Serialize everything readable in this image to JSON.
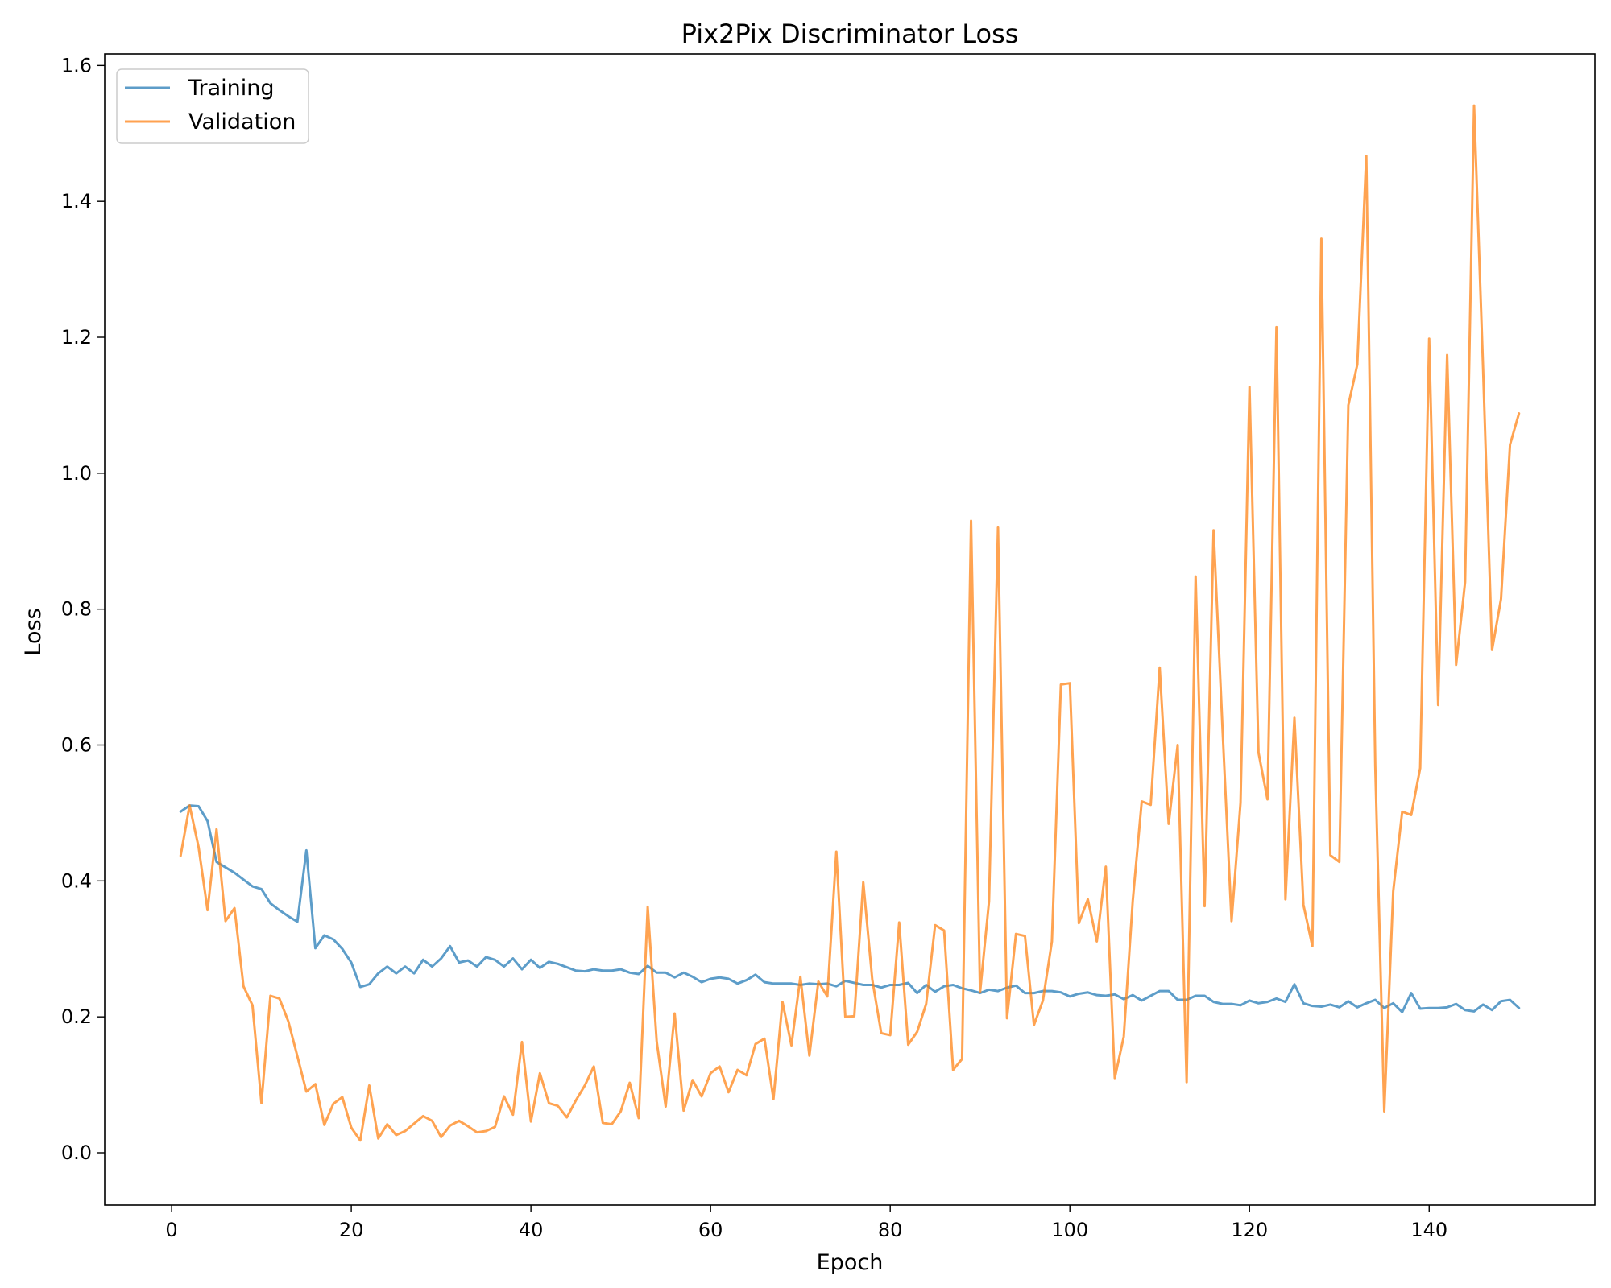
{
  "chart_data": {
    "type": "line",
    "title": "Pix2Pix Discriminator Loss",
    "xlabel": "Epoch",
    "ylabel": "Loss",
    "xlim": [
      -7.45,
      158.45
    ],
    "ylim": [
      -0.077,
      1.617
    ],
    "xticks": [
      0,
      20,
      40,
      60,
      80,
      100,
      120,
      140
    ],
    "xtick_labels": [
      "0",
      "20",
      "40",
      "60",
      "80",
      "100",
      "120",
      "140"
    ],
    "yticks": [
      0.0,
      0.2,
      0.4,
      0.6,
      0.8,
      1.0,
      1.2,
      1.4,
      1.6
    ],
    "ytick_labels": [
      "0.0",
      "0.2",
      "0.4",
      "0.6",
      "0.8",
      "1.0",
      "1.2",
      "1.4",
      "1.6"
    ],
    "grid": false,
    "legend": "top-left",
    "x_start": 1,
    "x_end": 150,
    "series": [
      {
        "name": "Training",
        "color": "#1f77b4",
        "values": [
          0.502,
          0.511,
          0.51,
          0.488,
          0.428,
          0.42,
          0.412,
          0.402,
          0.392,
          0.388,
          0.367,
          0.357,
          0.348,
          0.34,
          0.445,
          0.301,
          0.32,
          0.314,
          0.3,
          0.28,
          0.244,
          0.248,
          0.264,
          0.274,
          0.264,
          0.274,
          0.264,
          0.284,
          0.274,
          0.286,
          0.304,
          0.28,
          0.283,
          0.274,
          0.288,
          0.284,
          0.274,
          0.286,
          0.27,
          0.284,
          0.272,
          0.281,
          0.278,
          0.273,
          0.268,
          0.267,
          0.27,
          0.268,
          0.268,
          0.27,
          0.265,
          0.263,
          0.275,
          0.265,
          0.265,
          0.258,
          0.265,
          0.259,
          0.251,
          0.256,
          0.258,
          0.256,
          0.249,
          0.254,
          0.262,
          0.251,
          0.249,
          0.249,
          0.249,
          0.247,
          0.249,
          0.248,
          0.249,
          0.245,
          0.253,
          0.25,
          0.247,
          0.247,
          0.243,
          0.247,
          0.247,
          0.25,
          0.235,
          0.247,
          0.237,
          0.245,
          0.247,
          0.242,
          0.239,
          0.235,
          0.24,
          0.238,
          0.243,
          0.246,
          0.235,
          0.235,
          0.238,
          0.238,
          0.236,
          0.23,
          0.234,
          0.236,
          0.232,
          0.231,
          0.233,
          0.226,
          0.232,
          0.224,
          0.231,
          0.238,
          0.238,
          0.225,
          0.225,
          0.231,
          0.231,
          0.222,
          0.219,
          0.219,
          0.217,
          0.224,
          0.22,
          0.222,
          0.227,
          0.222,
          0.248,
          0.22,
          0.216,
          0.215,
          0.218,
          0.214,
          0.223,
          0.214,
          0.22,
          0.225,
          0.213,
          0.22,
          0.207,
          0.235,
          0.212,
          0.213,
          0.213,
          0.214,
          0.219,
          0.21,
          0.208,
          0.218,
          0.21,
          0.223,
          0.225,
          0.213
        ]
      },
      {
        "name": "Validation",
        "color": "#ff7f0e",
        "values": [
          0.437,
          0.511,
          0.45,
          0.357,
          0.476,
          0.341,
          0.36,
          0.245,
          0.217,
          0.073,
          0.231,
          0.227,
          0.193,
          0.142,
          0.09,
          0.101,
          0.041,
          0.072,
          0.082,
          0.037,
          0.018,
          0.099,
          0.021,
          0.042,
          0.026,
          0.032,
          0.043,
          0.054,
          0.047,
          0.023,
          0.04,
          0.047,
          0.039,
          0.03,
          0.032,
          0.038,
          0.083,
          0.056,
          0.163,
          0.046,
          0.117,
          0.073,
          0.069,
          0.052,
          0.077,
          0.099,
          0.127,
          0.044,
          0.042,
          0.061,
          0.103,
          0.051,
          0.362,
          0.164,
          0.068,
          0.205,
          0.062,
          0.107,
          0.083,
          0.117,
          0.127,
          0.089,
          0.122,
          0.114,
          0.16,
          0.168,
          0.079,
          0.222,
          0.158,
          0.259,
          0.143,
          0.252,
          0.23,
          0.443,
          0.2,
          0.201,
          0.398,
          0.255,
          0.176,
          0.173,
          0.339,
          0.159,
          0.178,
          0.219,
          0.335,
          0.327,
          0.122,
          0.138,
          0.93,
          0.236,
          0.37,
          0.92,
          0.198,
          0.322,
          0.319,
          0.188,
          0.224,
          0.311,
          0.689,
          0.691,
          0.338,
          0.373,
          0.311,
          0.421,
          0.11,
          0.171,
          0.371,
          0.517,
          0.512,
          0.714,
          0.484,
          0.6,
          0.104,
          0.848,
          0.363,
          0.916,
          0.622,
          0.341,
          0.515,
          1.127,
          0.589,
          0.52,
          1.215,
          0.373,
          0.64,
          0.365,
          0.304,
          1.345,
          0.438,
          0.428,
          1.1,
          1.16,
          1.467,
          0.569,
          0.061,
          0.385,
          0.502,
          0.497,
          0.566,
          1.198,
          0.659,
          1.174,
          0.718,
          0.84,
          1.541,
          1.155,
          0.74,
          0.815,
          1.042,
          1.088
        ]
      }
    ]
  }
}
